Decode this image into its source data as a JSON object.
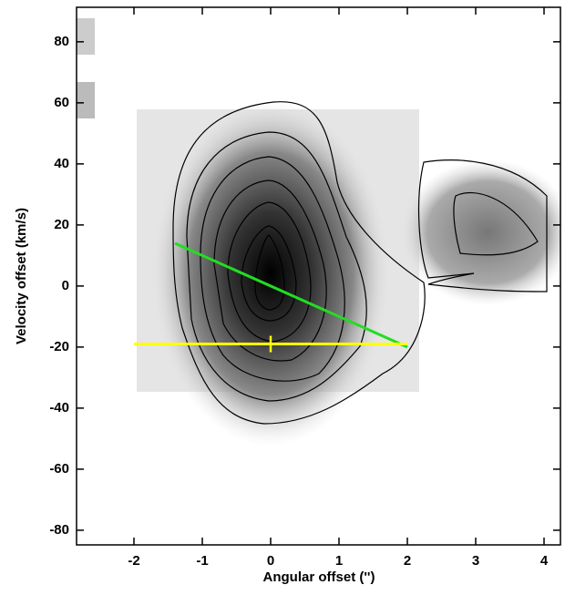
{
  "chart_data": {
    "type": "line",
    "x_label": "Angular offset ('')",
    "y_label": "Velocity offset (km/s)",
    "xlim": [
      -2.84,
      4.24
    ],
    "ylim": [
      -84.8,
      91.3
    ],
    "xticks": [
      -2,
      -1,
      0,
      1,
      2,
      3,
      4
    ],
    "yticks": [
      -80,
      -60,
      -40,
      -20,
      0,
      20,
      40,
      60,
      80
    ],
    "series": [
      {
        "color": "#22dd22",
        "x": [
          -1.4,
          2
        ],
        "values": [
          14,
          -20
        ]
      },
      {
        "color": "#ffff00",
        "x": [
          -2,
          2
        ],
        "values": [
          -19,
          -19
        ]
      }
    ],
    "points": [
      {
        "x": 0,
        "value": -19,
        "color": "#ffff00"
      }
    ]
  }
}
